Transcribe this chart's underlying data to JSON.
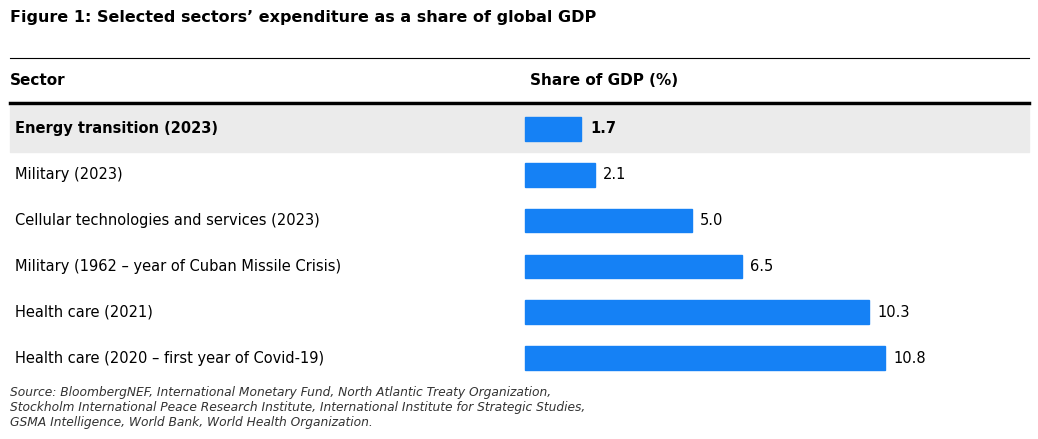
{
  "title": "Figure 1: Selected sectors’ expenditure as a share of global GDP",
  "col_header_left": "Sector",
  "col_header_right": "Share of GDP (%)",
  "categories": [
    "Energy transition (2023)",
    "Military (2023)",
    "Cellular technologies and services (2023)",
    "Military (1962 – year of Cuban Missile Crisis)",
    "Health care (2021)",
    "Health care (2020 – first year of Covid-19)"
  ],
  "values": [
    1.7,
    2.1,
    5.0,
    6.5,
    10.3,
    10.8
  ],
  "bar_color": "#1581f5",
  "highlight_index": 0,
  "highlight_bg": "#ebebeb",
  "xlim": [
    0,
    13
  ],
  "bar_height": 0.52,
  "source_text": "Source: BloombergNEF, International Monetary Fund, North Atlantic Treaty Organization,\nStockholm International Peace Research Institute, International Institute for Strategic Studies,\nGSMA Intelligence, World Bank, World Health Organization.",
  "background_color": "#ffffff"
}
